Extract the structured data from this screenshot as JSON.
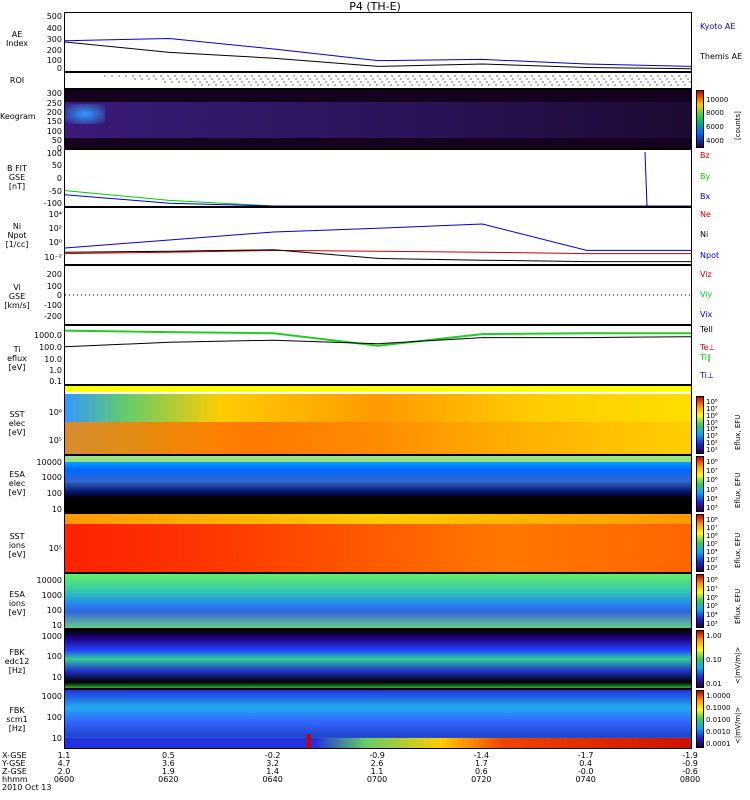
{
  "title": "P4 (TH-E)",
  "colors": {
    "blue": "#0000cc",
    "red": "#cc0000",
    "green": "#00cc00",
    "black": "#000000"
  },
  "panels": {
    "ae": {
      "ylabel": [
        "AE Index"
      ],
      "ticks": [
        "500",
        "400",
        "300",
        "200",
        "100",
        "0"
      ],
      "legend": [
        "Kyoto AE",
        "Themis AE"
      ]
    },
    "roi": {
      "ylabel": [
        "ROI"
      ]
    },
    "keogram": {
      "ylabel": [
        "Keogram"
      ],
      "ticks": [
        "300",
        "250",
        "200",
        "150",
        "100",
        "50",
        "0"
      ],
      "cbar_ticks": [
        "10000",
        "8000",
        "6000",
        "4000"
      ],
      "cbar_unit": "[counts]"
    },
    "bfit": {
      "ylabel": [
        "B FIT",
        "GSE",
        "[nT]"
      ],
      "ticks": [
        "100",
        "50",
        "0",
        "-50",
        "-100"
      ],
      "legend": [
        "Bz",
        "By",
        "Bx"
      ]
    },
    "ni": {
      "ylabel": [
        "Ni",
        "Npot",
        "[1/cc]"
      ],
      "ticks": [
        "10⁴",
        "10²",
        "10⁰",
        "10⁻²"
      ],
      "legend": [
        "Ne",
        "Ni",
        "Npot"
      ]
    },
    "vi": {
      "ylabel": [
        "Vi",
        "GSE",
        "[km/s]"
      ],
      "ticks": [
        "200",
        "100",
        "0",
        "-100",
        "-200"
      ],
      "legend": [
        "Viz",
        "Viy",
        "Vix"
      ]
    },
    "ti": {
      "ylabel": [
        "Ti",
        "eflux",
        "[eV]"
      ],
      "ticks": [
        "1000.0",
        "100.0",
        "10.0",
        "1.0",
        "0.1"
      ],
      "legend": [
        "Tell",
        "Te⊥",
        "Ti∥",
        "Ti⊥"
      ]
    },
    "sst_e": {
      "ylabel": [
        "SST",
        "elec",
        "[eV]"
      ],
      "ticks": [
        "10⁶",
        "10⁵"
      ],
      "cbar_ticks": [
        "10⁸",
        "10⁷",
        "10⁶",
        "10⁵",
        "10⁴",
        "10³",
        "10²",
        "10¹"
      ],
      "cbar_unit": "Eflux, EFU"
    },
    "esa_e": {
      "ylabel": [
        "ESA",
        "elec",
        "[eV]"
      ],
      "ticks": [
        "10000",
        "1000",
        "100",
        "10"
      ],
      "cbar_ticks": [
        "10⁸",
        "10⁷",
        "10⁶",
        "10⁵",
        "10⁴",
        "10³"
      ],
      "cbar_unit": "Eflux, EFU"
    },
    "sst_i": {
      "ylabel": [
        "SST",
        "ions",
        "[eV]"
      ],
      "ticks": [
        "10⁵"
      ],
      "cbar_ticks": [
        "10⁸",
        "10⁷",
        "10⁶",
        "10⁵",
        "10⁴",
        "10³",
        "10²"
      ],
      "cbar_unit": "Eflux, EFU"
    },
    "esa_i": {
      "ylabel": [
        "ESA",
        "ions",
        "[eV]"
      ],
      "ticks": [
        "10000",
        "1000",
        "100",
        "10"
      ],
      "cbar_ticks": [
        "10⁸",
        "10⁷",
        "10⁶",
        "10⁵",
        "10⁴",
        "10³"
      ],
      "cbar_unit": "Eflux, EFU"
    },
    "fbk_e": {
      "ylabel": [
        "FBK",
        "edc12",
        "[Hz]"
      ],
      "ticks": [
        "1000",
        "100",
        "10"
      ],
      "cbar_ticks": [
        "1.00",
        "0.10",
        "0.01"
      ],
      "cbar_unit": "<|mV/m|>"
    },
    "fbk_s": {
      "ylabel": [
        "FBK",
        "scm1",
        "[Hz]"
      ],
      "ticks": [
        "1000",
        "100",
        "10"
      ],
      "cbar_ticks": [
        "1.0000",
        "0.1000",
        "0.0100",
        "0.0010",
        "0.0001"
      ],
      "cbar_unit": "<|mV/m|>"
    }
  },
  "xaxis": {
    "row_labels": [
      "X-GSE",
      "Y-GSE",
      "Z-GSE",
      "hhmm",
      "2010 Oct 13"
    ],
    "ticks": [
      {
        "x": "1.1",
        "y": "4.7",
        "z": "2.0",
        "t": "0600"
      },
      {
        "x": "0.5",
        "y": "3.6",
        "z": "1.9",
        "t": "0620"
      },
      {
        "x": "-0.2",
        "y": "3.2",
        "z": "1.4",
        "t": "0640"
      },
      {
        "x": "-0.9",
        "y": "2.6",
        "z": "1.1",
        "t": "0700"
      },
      {
        "x": "-1.4",
        "y": "1.7",
        "z": "0.6",
        "t": "0720"
      },
      {
        "x": "-1.7",
        "y": "0.4",
        "z": "-0.0",
        "t": "0740"
      },
      {
        "x": "-1.9",
        "y": "-0.9",
        "z": "-0.6",
        "t": "0800"
      }
    ]
  },
  "chart_data": [
    {
      "type": "line",
      "title": "P4 (TH-E)",
      "ylabel": "AE Index",
      "ylim": [
        0,
        500
      ],
      "x": [
        "0600",
        "0620",
        "0640",
        "0700",
        "0720",
        "0740",
        "0800"
      ],
      "series": [
        {
          "name": "Kyoto AE",
          "values": [
            260,
            280,
            190,
            90,
            100,
            60,
            40
          ]
        },
        {
          "name": "Themis AE",
          "values": [
            250,
            160,
            110,
            40,
            60,
            30,
            20
          ]
        }
      ]
    },
    {
      "type": "line",
      "ylabel": "B FIT GSE [nT]",
      "ylim": [
        -100,
        100
      ],
      "x": [
        "0600",
        "0620",
        "0640",
        "0700",
        "0720",
        "0740",
        "0800"
      ],
      "series": [
        {
          "name": "By",
          "values": [
            -45,
            -80,
            -100,
            -100,
            -100,
            -100,
            -100
          ]
        },
        {
          "name": "Bx",
          "values": [
            -60,
            -90,
            -100,
            -100,
            -100,
            -100,
            -100
          ]
        }
      ]
    },
    {
      "type": "line",
      "ylabel": "Ni Npot [1/cc]",
      "x": [
        "0600",
        "0620",
        "0640",
        "0700",
        "0720",
        "0740",
        "0800"
      ],
      "series": [
        {
          "name": "Ni",
          "values": [
            1,
            10,
            100,
            300,
            1000,
            0.5,
            0.5
          ]
        },
        {
          "name": "Ne",
          "values": [
            0.2,
            0.3,
            0.5,
            0.4,
            0.3,
            0.2,
            0.2
          ]
        },
        {
          "name": "Npot",
          "values": [
            0.3,
            0.4,
            0.6,
            0.05,
            0.03,
            0.02,
            0.02
          ]
        }
      ]
    },
    {
      "type": "line",
      "ylabel": "Ti eflux [eV]",
      "x": [
        "0600",
        "0620",
        "0640",
        "0700",
        "0720",
        "0740",
        "0800"
      ],
      "series": [
        {
          "name": "Ti∥",
          "values": [
            2000,
            1500,
            1200,
            100,
            1000,
            1200,
            1200
          ]
        },
        {
          "name": "Tell",
          "values": [
            80,
            200,
            300,
            150,
            500,
            500,
            600
          ]
        }
      ]
    }
  ]
}
